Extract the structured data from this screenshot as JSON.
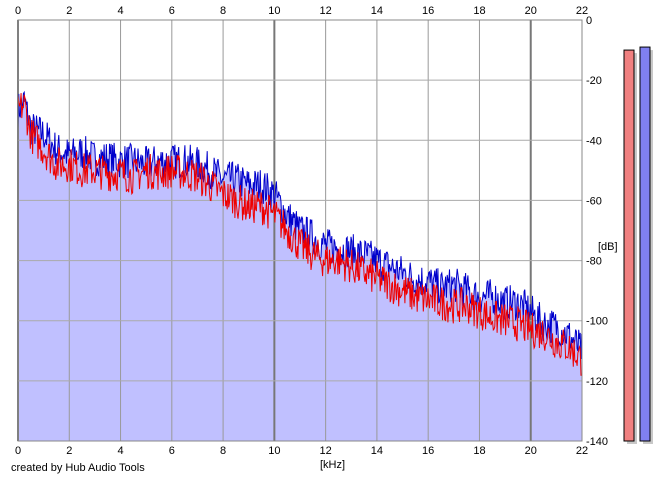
{
  "footer": {
    "credit": "created by Hub Audio Tools"
  },
  "chart_data": {
    "type": "line",
    "title": "",
    "xlabel": "[kHz]",
    "ylabel": "[dB]",
    "xlim": [
      0,
      22
    ],
    "ylim": [
      -140,
      0
    ],
    "x_ticks": [
      "0",
      "2",
      "4",
      "6",
      "8",
      "10",
      "12",
      "14",
      "16",
      "18",
      "20",
      "22"
    ],
    "y_ticks": [
      "0",
      "-20",
      "-40",
      "-60",
      "-80",
      "-100",
      "-120",
      "-140"
    ],
    "grid": true,
    "x": [
      0,
      0.25,
      0.5,
      1,
      1.5,
      2,
      2.5,
      3,
      3.5,
      4,
      4.5,
      5,
      5.5,
      6,
      6.5,
      7,
      7.5,
      8,
      8.5,
      9,
      9.5,
      10,
      10.5,
      11,
      11.5,
      12,
      12.5,
      13,
      13.5,
      14,
      14.5,
      15,
      15.5,
      16,
      16.5,
      17,
      17.5,
      18,
      18.5,
      19,
      19.5,
      20,
      20.5,
      21,
      21.5,
      22
    ],
    "series": [
      {
        "color": "#0000cc",
        "values": [
          -30,
          -27,
          -36,
          -38,
          -43,
          -45,
          -44,
          -46,
          -46,
          -47,
          -47,
          -48,
          -47,
          -47,
          -47,
          -48,
          -50,
          -53,
          -53,
          -55,
          -55,
          -58,
          -65,
          -70,
          -72,
          -75,
          -76,
          -77,
          -78,
          -80,
          -82,
          -84,
          -86,
          -87,
          -89,
          -88,
          -90,
          -92,
          -92,
          -94,
          -94,
          -97,
          -101,
          -102,
          -105,
          -110
        ]
      },
      {
        "color": "#ee0000",
        "values": [
          -30,
          -28,
          -38,
          -43,
          -48,
          -48,
          -50,
          -50,
          -51,
          -51,
          -52,
          -50,
          -51,
          -50,
          -51,
          -52,
          -55,
          -58,
          -60,
          -62,
          -62,
          -65,
          -70,
          -75,
          -78,
          -80,
          -80,
          -82,
          -84,
          -86,
          -88,
          -90,
          -92,
          -93,
          -94,
          -95,
          -95,
          -97,
          -99,
          -100,
          -101,
          -103,
          -104,
          -107,
          -109,
          -113
        ]
      }
    ],
    "fill_color": "#c0c0ff",
    "level_meters": [
      {
        "color": "#f08080",
        "level_db": -10
      },
      {
        "color": "#8080f0",
        "level_db": -9
      }
    ]
  }
}
